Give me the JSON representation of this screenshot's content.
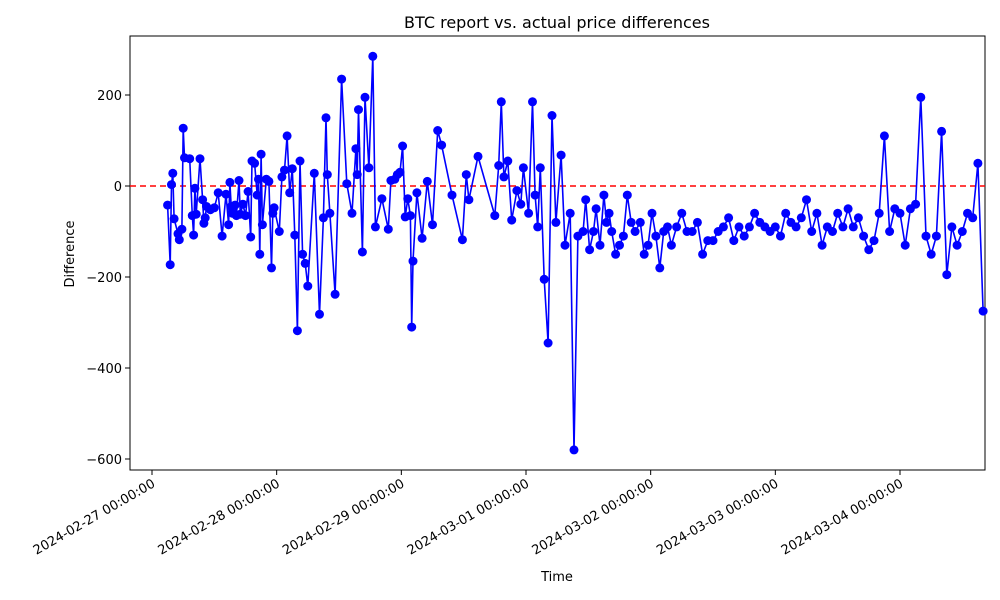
{
  "chart_data": {
    "type": "line",
    "title": "BTC report vs. actual price differences",
    "xlabel": "Time",
    "ylabel": "Difference",
    "x_ticks": [
      "2024-02-27 00:00:00",
      "2024-02-28 00:00:00",
      "2024-02-29 00:00:00",
      "2024-03-01 00:00:00",
      "2024-03-02 00:00:00",
      "2024-03-03 00:00:00",
      "2024-03-04 00:00:00"
    ],
    "y_ticks": [
      -600,
      -400,
      -200,
      0,
      200
    ],
    "xlim": [
      "2026-02-26 17:00:00",
      "2024-03-04 17:15:00"
    ],
    "ylim": [
      -625,
      330
    ],
    "grid": false,
    "reference_line": {
      "y": 0,
      "color": "#ff0000",
      "style": "dashed"
    },
    "series": [
      {
        "color": "#0000ff",
        "marker": "circle",
        "x": [
          "2024-02-27 03:00",
          "2024-02-27 03:30",
          "2024-02-27 03:45",
          "2024-02-27 04:00",
          "2024-02-27 04:15",
          "2024-02-27 05:00",
          "2024-02-27 05:15",
          "2024-02-27 05:45",
          "2024-02-27 06:00",
          "2024-02-27 06:15",
          "2024-02-27 07:15",
          "2024-02-27 07:45",
          "2024-02-27 08:00",
          "2024-02-27 08:15",
          "2024-02-27 08:30",
          "2024-02-27 09:15",
          "2024-02-27 09:45",
          "2024-02-27 10:00",
          "2024-02-27 10:15",
          "2024-02-27 10:30",
          "2024-02-27 11:15",
          "2024-02-27 12:00",
          "2024-02-27 12:45",
          "2024-02-27 13:30",
          "2024-02-27 14:15",
          "2024-02-27 14:45",
          "2024-02-27 15:00",
          "2024-02-27 15:15",
          "2024-02-27 15:30",
          "2024-02-27 16:00",
          "2024-02-27 16:15",
          "2024-02-27 16:45",
          "2024-02-27 17:00",
          "2024-02-27 17:30",
          "2024-02-27 18:00",
          "2024-02-27 18:30",
          "2024-02-27 19:00",
          "2024-02-27 19:15",
          "2024-02-27 19:45",
          "2024-02-27 20:15",
          "2024-02-27 20:30",
          "2024-02-27 20:45",
          "2024-02-27 21:00",
          "2024-02-27 21:15",
          "2024-02-27 22:00",
          "2024-02-27 22:30",
          "2024-02-27 23:00",
          "2024-02-27 23:15",
          "2024-02-27 23:30",
          "2024-02-28 00:30",
          "2024-02-28 01:00",
          "2024-02-28 01:30",
          "2024-02-28 02:00",
          "2024-02-28 02:30",
          "2024-02-28 03:00",
          "2024-02-28 03:30",
          "2024-02-28 04:00",
          "2024-02-28 04:30",
          "2024-02-28 05:00",
          "2024-02-28 05:30",
          "2024-02-28 06:00",
          "2024-02-28 07:15",
          "2024-02-28 08:15",
          "2024-02-28 09:00",
          "2024-02-28 09:30",
          "2024-02-28 09:45",
          "2024-02-28 10:15",
          "2024-02-28 11:15",
          "2024-02-28 12:30",
          "2024-02-28 13:30",
          "2024-02-28 14:30",
          "2024-02-28 15:15",
          "2024-02-28 15:30",
          "2024-02-28 15:45",
          "2024-02-28 16:30",
          "2024-02-28 17:00",
          "2024-02-28 17:45",
          "2024-02-28 18:30",
          "2024-02-28 19:00",
          "2024-02-28 20:15",
          "2024-02-28 21:30",
          "2024-02-28 22:00",
          "2024-02-28 22:45",
          "2024-02-28 23:15",
          "2024-02-28 23:45",
          "2024-02-29 00:15",
          "2024-02-29 00:45",
          "2024-02-29 01:15",
          "2024-02-29 01:45",
          "2024-02-29 02:00",
          "2024-02-29 02:15",
          "2024-02-29 03:00",
          "2024-02-29 04:00",
          "2024-02-29 05:00",
          "2024-02-29 06:00",
          "2024-02-29 07:00",
          "2024-02-29 07:45",
          "2024-02-29 09:45",
          "2024-02-29 11:45",
          "2024-02-29 12:30",
          "2024-02-29 13:00",
          "2024-02-29 14:45",
          "2024-02-29 18:00",
          "2024-02-29 18:45",
          "2024-02-29 19:15",
          "2024-02-29 19:45",
          "2024-02-29 20:30",
          "2024-02-29 21:15",
          "2024-02-29 22:15",
          "2024-02-29 23:00",
          "2024-02-29 23:30",
          "2024-03-01 00:30",
          "2024-03-01 01:15",
          "2024-03-01 01:45",
          "2024-03-01 02:15",
          "2024-03-01 02:45",
          "2024-03-01 03:30",
          "2024-03-01 04:15",
          "2024-03-01 05:00",
          "2024-03-01 05:45",
          "2024-03-01 06:45",
          "2024-03-01 07:30",
          "2024-03-01 08:30",
          "2024-03-01 09:15",
          "2024-03-01 10:00",
          "2024-03-01 11:00",
          "2024-03-01 11:30",
          "2024-03-01 12:15",
          "2024-03-01 13:00",
          "2024-03-01 13:30",
          "2024-03-01 14:15",
          "2024-03-01 15:00",
          "2024-03-01 15:30",
          "2024-03-01 16:00",
          "2024-03-01 16:30",
          "2024-03-01 17:15",
          "2024-03-01 18:00",
          "2024-03-01 18:45",
          "2024-03-01 19:30",
          "2024-03-01 20:15",
          "2024-03-01 21:00",
          "2024-03-01 22:00",
          "2024-03-01 22:45",
          "2024-03-01 23:30",
          "2024-03-02 00:15",
          "2024-03-02 01:00",
          "2024-03-02 01:45",
          "2024-03-02 02:30",
          "2024-03-02 03:15",
          "2024-03-02 04:00",
          "2024-03-02 05:00",
          "2024-03-02 06:00",
          "2024-03-02 07:00",
          "2024-03-02 08:00",
          "2024-03-02 09:00",
          "2024-03-02 10:00",
          "2024-03-02 11:00",
          "2024-03-02 12:00",
          "2024-03-02 13:00",
          "2024-03-02 14:00",
          "2024-03-02 15:00",
          "2024-03-02 16:00",
          "2024-03-02 17:00",
          "2024-03-02 18:00",
          "2024-03-02 19:00",
          "2024-03-02 20:00",
          "2024-03-02 21:00",
          "2024-03-02 22:00",
          "2024-03-02 23:00",
          "2024-03-03 00:00",
          "2024-03-03 01:00",
          "2024-03-03 02:00",
          "2024-03-03 03:00",
          "2024-03-03 04:00",
          "2024-03-03 05:00",
          "2024-03-03 06:00",
          "2024-03-03 07:00",
          "2024-03-03 08:00",
          "2024-03-03 09:00",
          "2024-03-03 10:00",
          "2024-03-03 11:00",
          "2024-03-03 12:00",
          "2024-03-03 13:00",
          "2024-03-03 14:00",
          "2024-03-03 15:00",
          "2024-03-03 16:00",
          "2024-03-03 17:00",
          "2024-03-03 18:00",
          "2024-03-03 19:00",
          "2024-03-03 20:00",
          "2024-03-03 21:00",
          "2024-03-03 22:00",
          "2024-03-03 23:00",
          "2024-03-04 00:00",
          "2024-03-04 01:00",
          "2024-03-04 02:00",
          "2024-03-04 03:00",
          "2024-03-04 04:00",
          "2024-03-04 05:00",
          "2024-03-04 06:00",
          "2024-03-04 07:00",
          "2024-03-04 08:00",
          "2024-03-04 09:00",
          "2024-03-04 10:00",
          "2024-03-04 11:00",
          "2024-03-04 12:00",
          "2024-03-04 13:00",
          "2024-03-04 14:00",
          "2024-03-04 15:00",
          "2024-03-04 16:00"
        ],
        "y": [
          -42,
          -173,
          3,
          28,
          -72,
          -105,
          -118,
          -95,
          127,
          62,
          60,
          -65,
          -108,
          -5,
          -62,
          60,
          -30,
          -82,
          -70,
          -45,
          -52,
          -48,
          -15,
          -110,
          -18,
          -85,
          8,
          -45,
          -60,
          -42,
          -65,
          12,
          -62,
          -40,
          -65,
          -12,
          -112,
          55,
          50,
          -20,
          15,
          -150,
          70,
          -85,
          15,
          10,
          -180,
          -60,
          -48,
          -100,
          20,
          35,
          110,
          -15,
          38,
          -108,
          -318,
          55,
          -150,
          -170,
          -220,
          28,
          -282,
          -70,
          150,
          25,
          -60,
          -238,
          235,
          5,
          -60,
          82,
          25,
          168,
          -145,
          195,
          40,
          285,
          -90,
          -28,
          -95,
          12,
          15,
          25,
          30,
          88,
          -68,
          -28,
          -65,
          -310,
          -165,
          -15,
          -115,
          10,
          -85,
          122,
          90,
          -20,
          -118,
          25,
          -30,
          65,
          -65,
          45,
          185,
          20,
          55,
          -75,
          -10,
          -40,
          40,
          -60,
          185,
          -20,
          -90,
          40,
          -205,
          -345,
          155,
          -80,
          68,
          -130,
          -60,
          -580,
          -110,
          -100,
          -30,
          -140,
          -100,
          -50,
          -130,
          -20,
          -80,
          -60,
          -100,
          -150,
          -130,
          -110,
          -20,
          -80,
          -100,
          -80,
          -150,
          -130,
          -60,
          -110,
          -180,
          -100,
          -90,
          -130,
          -90,
          -60,
          -100,
          -100,
          -80,
          -150,
          -120,
          -120,
          -100,
          -90,
          -70,
          -120,
          -90,
          -110,
          -90,
          -60,
          -80,
          -90,
          -100,
          -90,
          -110,
          -60,
          -80,
          -90,
          -70,
          -30,
          -100,
          -60,
          -130,
          -90,
          -100,
          -60,
          -90,
          -50,
          -90,
          -70,
          -110,
          -140,
          -120,
          -60,
          110,
          -100,
          -50,
          -60,
          -130,
          -50,
          -40,
          195,
          -110,
          -150,
          -110,
          120,
          -195,
          -90,
          -130,
          -100,
          -60,
          -70,
          50,
          -275
        ]
      }
    ]
  }
}
